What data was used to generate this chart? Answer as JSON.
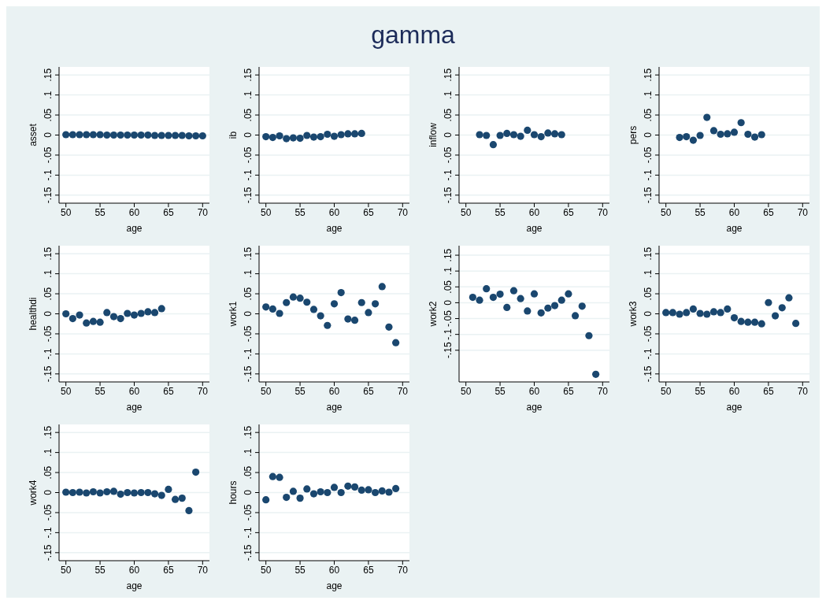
{
  "chart_data": [
    {
      "type": "other",
      "title": "gamma"
    },
    {
      "type": "scatter",
      "xlabel": "age",
      "ylabel": "asset",
      "x": [
        50,
        51,
        52,
        53,
        54,
        55,
        56,
        57,
        58,
        59,
        60,
        61,
        62,
        63,
        64,
        65,
        66,
        67,
        68,
        69,
        70
      ],
      "values": [
        0.001,
        0.001,
        0.001,
        0.001,
        0.001,
        0.001,
        0,
        0,
        0,
        0,
        0,
        0,
        0,
        -0.001,
        -0.001,
        -0.001,
        -0.001,
        -0.001,
        -0.002,
        -0.002,
        -0.002
      ],
      "color": "#1a476f",
      "marker": "circle",
      "grid": "y",
      "xlim": [
        49,
        71
      ],
      "xticks": [
        50,
        55,
        60,
        65,
        70
      ],
      "ylim": [
        -0.17,
        0.17
      ],
      "yticks": [
        {
          "value": -0.15,
          "label": "-.15"
        },
        {
          "value": -0.1,
          "label": "-.1"
        },
        {
          "value": -0.05,
          "label": "-.05"
        },
        {
          "value": 0,
          "label": "0"
        },
        {
          "value": 0.05,
          "label": ".05"
        },
        {
          "value": 0.1,
          "label": ".1"
        },
        {
          "value": 0.15,
          "label": ".15"
        }
      ]
    },
    {
      "type": "scatter",
      "xlabel": "age",
      "ylabel": "ib",
      "x": [
        50,
        51,
        52,
        53,
        54,
        55,
        56,
        57,
        58,
        59,
        60,
        61,
        62,
        63,
        64
      ],
      "values": [
        -0.004,
        -0.006,
        -0.002,
        -0.009,
        -0.007,
        -0.008,
        -0.001,
        -0.005,
        -0.004,
        0.002,
        -0.003,
        0.001,
        0.003,
        0.003,
        0.004
      ],
      "color": "#1a476f",
      "marker": "circle",
      "grid": "y",
      "xlim": [
        49,
        71
      ],
      "xticks": [
        50,
        55,
        60,
        65,
        70
      ],
      "ylim": [
        -0.17,
        0.17
      ],
      "yticks": [
        {
          "value": -0.15,
          "label": "-.15"
        },
        {
          "value": -0.1,
          "label": "-.1"
        },
        {
          "value": -0.05,
          "label": "-.05"
        },
        {
          "value": 0,
          "label": "0"
        },
        {
          "value": 0.05,
          "label": ".05"
        },
        {
          "value": 0.1,
          "label": ".1"
        },
        {
          "value": 0.15,
          "label": ".15"
        }
      ]
    },
    {
      "type": "scatter",
      "xlabel": "age",
      "ylabel": "inflow",
      "x": [
        52,
        53,
        54,
        55,
        56,
        57,
        58,
        59,
        60,
        61,
        62,
        63,
        64
      ],
      "values": [
        0.001,
        -0.001,
        -0.024,
        -0.001,
        0.004,
        0.001,
        -0.003,
        0.012,
        0.001,
        -0.004,
        0.005,
        0.003,
        0.001
      ],
      "color": "#1a476f",
      "marker": "circle",
      "grid": "y",
      "xlim": [
        49,
        71
      ],
      "xticks": [
        50,
        55,
        60,
        65,
        70
      ],
      "ylim": [
        -0.17,
        0.17
      ],
      "yticks": [
        {
          "value": -0.15,
          "label": "-.15"
        },
        {
          "value": -0.1,
          "label": "-.1"
        },
        {
          "value": -0.05,
          "label": "-.05"
        },
        {
          "value": 0,
          "label": "0"
        },
        {
          "value": 0.05,
          "label": ".05"
        },
        {
          "value": 0.1,
          "label": ".1"
        },
        {
          "value": 0.15,
          "label": ".15"
        }
      ]
    },
    {
      "type": "scatter",
      "xlabel": "age",
      "ylabel": "pers",
      "x": [
        52,
        53,
        54,
        55,
        56,
        57,
        58,
        59,
        60,
        61,
        62,
        63,
        64
      ],
      "values": [
        -0.006,
        -0.004,
        -0.013,
        -0.001,
        0.044,
        0.011,
        0.002,
        0.003,
        0.007,
        0.031,
        0.002,
        -0.005,
        0.001
      ],
      "color": "#1a476f",
      "marker": "circle",
      "grid": "y",
      "xlim": [
        49,
        71
      ],
      "xticks": [
        50,
        55,
        60,
        65,
        70
      ],
      "ylim": [
        -0.17,
        0.17
      ],
      "yticks": [
        {
          "value": -0.15,
          "label": "-.15"
        },
        {
          "value": -0.1,
          "label": "-.1"
        },
        {
          "value": -0.05,
          "label": "-.05"
        },
        {
          "value": 0,
          "label": "0"
        },
        {
          "value": 0.05,
          "label": ".05"
        },
        {
          "value": 0.1,
          "label": ".1"
        },
        {
          "value": 0.15,
          "label": ".15"
        }
      ]
    },
    {
      "type": "scatter",
      "xlabel": "age",
      "ylabel": "healthdi",
      "x": [
        50,
        51,
        52,
        53,
        54,
        55,
        56,
        57,
        58,
        59,
        60,
        61,
        62,
        63,
        64
      ],
      "values": [
        0,
        -0.012,
        -0.003,
        -0.023,
        -0.019,
        -0.021,
        0.003,
        -0.007,
        -0.012,
        0.001,
        -0.003,
        0.001,
        0.005,
        0.003,
        0.013
      ],
      "color": "#1a476f",
      "marker": "circle",
      "grid": "y",
      "xlim": [
        49,
        71
      ],
      "xticks": [
        50,
        55,
        60,
        65,
        70
      ],
      "ylim": [
        -0.17,
        0.17
      ],
      "yticks": [
        {
          "value": -0.15,
          "label": "-.15"
        },
        {
          "value": -0.1,
          "label": "-.1"
        },
        {
          "value": -0.05,
          "label": "-.05"
        },
        {
          "value": 0,
          "label": "0"
        },
        {
          "value": 0.05,
          "label": ".05"
        },
        {
          "value": 0.1,
          "label": ".1"
        },
        {
          "value": 0.15,
          "label": ".15"
        }
      ]
    },
    {
      "type": "scatter",
      "xlabel": "age",
      "ylabel": "work1",
      "x": [
        50,
        51,
        52,
        53,
        54,
        55,
        56,
        57,
        58,
        59,
        60,
        61,
        62,
        63,
        64,
        65,
        66,
        67,
        68,
        69
      ],
      "values": [
        0.017,
        0.012,
        0.001,
        0.028,
        0.042,
        0.039,
        0.029,
        0.011,
        -0.005,
        -0.029,
        0.025,
        0.053,
        -0.013,
        -0.016,
        0.028,
        0.003,
        0.025,
        0.068,
        -0.033,
        -0.072
      ],
      "color": "#1a476f",
      "marker": "circle",
      "grid": "y",
      "xlim": [
        49,
        71
      ],
      "xticks": [
        50,
        55,
        60,
        65,
        70
      ],
      "ylim": [
        -0.17,
        0.17
      ],
      "yticks": [
        {
          "value": -0.15,
          "label": "-.15"
        },
        {
          "value": -0.1,
          "label": "-.1"
        },
        {
          "value": -0.05,
          "label": "-.05"
        },
        {
          "value": 0,
          "label": "0"
        },
        {
          "value": 0.05,
          "label": ".05"
        },
        {
          "value": 0.1,
          "label": ".1"
        },
        {
          "value": 0.15,
          "label": ".15"
        }
      ]
    },
    {
      "type": "scatter",
      "xlabel": "age",
      "ylabel": "work2",
      "x": [
        51,
        52,
        53,
        54,
        55,
        56,
        57,
        58,
        59,
        60,
        61,
        62,
        63,
        64,
        65,
        66,
        67,
        68,
        69
      ],
      "values": [
        0.017,
        0.008,
        0.044,
        0.017,
        0.027,
        -0.015,
        0.038,
        0.013,
        -0.026,
        0.028,
        -0.032,
        -0.017,
        -0.009,
        0.008,
        0.028,
        -0.041,
        -0.011,
        -0.104,
        -0.226
      ],
      "color": "#1a476f",
      "marker": "circle",
      "grid": "y",
      "xlim": [
        49,
        71
      ],
      "xticks": [
        50,
        55,
        60,
        65,
        70
      ],
      "ylim": [
        -0.25,
        0.18
      ],
      "yticks": [
        {
          "value": -0.15,
          "label": "-.15"
        },
        {
          "value": -0.1,
          "label": "-.1"
        },
        {
          "value": -0.05,
          "label": "-.05"
        },
        {
          "value": 0,
          "label": "0"
        },
        {
          "value": 0.05,
          "label": ".05"
        },
        {
          "value": 0.1,
          "label": ".1"
        },
        {
          "value": 0.15,
          "label": ".15"
        }
      ]
    },
    {
      "type": "scatter",
      "xlabel": "age",
      "ylabel": "work3",
      "x": [
        50,
        51,
        52,
        53,
        54,
        55,
        56,
        57,
        58,
        59,
        60,
        61,
        62,
        63,
        64,
        65,
        66,
        67,
        68,
        69
      ],
      "values": [
        0.003,
        0.003,
        -0.001,
        0.003,
        0.012,
        0.001,
        -0.001,
        0.005,
        0.003,
        0.012,
        -0.01,
        -0.019,
        -0.021,
        -0.021,
        -0.025,
        0.028,
        -0.005,
        0.015,
        0.04,
        -0.024
      ],
      "color": "#1a476f",
      "marker": "circle",
      "grid": "y",
      "xlim": [
        49,
        71
      ],
      "xticks": [
        50,
        55,
        60,
        65,
        70
      ],
      "ylim": [
        -0.17,
        0.17
      ],
      "yticks": [
        {
          "value": -0.15,
          "label": "-.15"
        },
        {
          "value": -0.1,
          "label": "-.1"
        },
        {
          "value": -0.05,
          "label": "-.05"
        },
        {
          "value": 0,
          "label": "0"
        },
        {
          "value": 0.05,
          "label": ".05"
        },
        {
          "value": 0.1,
          "label": ".1"
        },
        {
          "value": 0.15,
          "label": ".15"
        }
      ]
    },
    {
      "type": "scatter",
      "xlabel": "age",
      "ylabel": "work4",
      "x": [
        50,
        51,
        52,
        53,
        54,
        55,
        56,
        57,
        58,
        59,
        60,
        61,
        62,
        63,
        64,
        65,
        66,
        67,
        68,
        69
      ],
      "values": [
        0.001,
        0,
        0.001,
        -0.001,
        0.002,
        -0.001,
        0.002,
        0.003,
        -0.004,
        0,
        -0.001,
        0,
        0,
        -0.003,
        -0.007,
        0.008,
        -0.017,
        -0.014,
        -0.045,
        0.051
      ],
      "color": "#1a476f",
      "marker": "circle",
      "grid": "y",
      "xlim": [
        49,
        71
      ],
      "xticks": [
        50,
        55,
        60,
        65,
        70
      ],
      "ylim": [
        -0.17,
        0.17
      ],
      "yticks": [
        {
          "value": -0.15,
          "label": "-.15"
        },
        {
          "value": -0.1,
          "label": "-.1"
        },
        {
          "value": -0.05,
          "label": "-.05"
        },
        {
          "value": 0,
          "label": "0"
        },
        {
          "value": 0.05,
          "label": ".05"
        },
        {
          "value": 0.1,
          "label": ".1"
        },
        {
          "value": 0.15,
          "label": ".15"
        }
      ]
    },
    {
      "type": "scatter",
      "xlabel": "age",
      "ylabel": "hours",
      "x": [
        50,
        51,
        52,
        53,
        54,
        55,
        56,
        57,
        58,
        59,
        60,
        61,
        62,
        63,
        64,
        65,
        66,
        67,
        68,
        69
      ],
      "values": [
        -0.018,
        0.04,
        0.038,
        -0.012,
        0.003,
        -0.014,
        0.009,
        -0.003,
        0.002,
        0,
        0.013,
        0,
        0.016,
        0.014,
        0.006,
        0.007,
        0,
        0.004,
        0.001,
        0.01
      ],
      "color": "#1a476f",
      "marker": "circle",
      "grid": "y",
      "xlim": [
        49,
        71
      ],
      "xticks": [
        50,
        55,
        60,
        65,
        70
      ],
      "ylim": [
        -0.17,
        0.17
      ],
      "yticks": [
        {
          "value": -0.15,
          "label": "-.15"
        },
        {
          "value": -0.1,
          "label": "-.1"
        },
        {
          "value": -0.05,
          "label": "-.05"
        },
        {
          "value": 0,
          "label": "0"
        },
        {
          "value": 0.05,
          "label": ".05"
        },
        {
          "value": 0.1,
          "label": ".1"
        },
        {
          "value": 0.15,
          "label": ".15"
        }
      ]
    }
  ]
}
